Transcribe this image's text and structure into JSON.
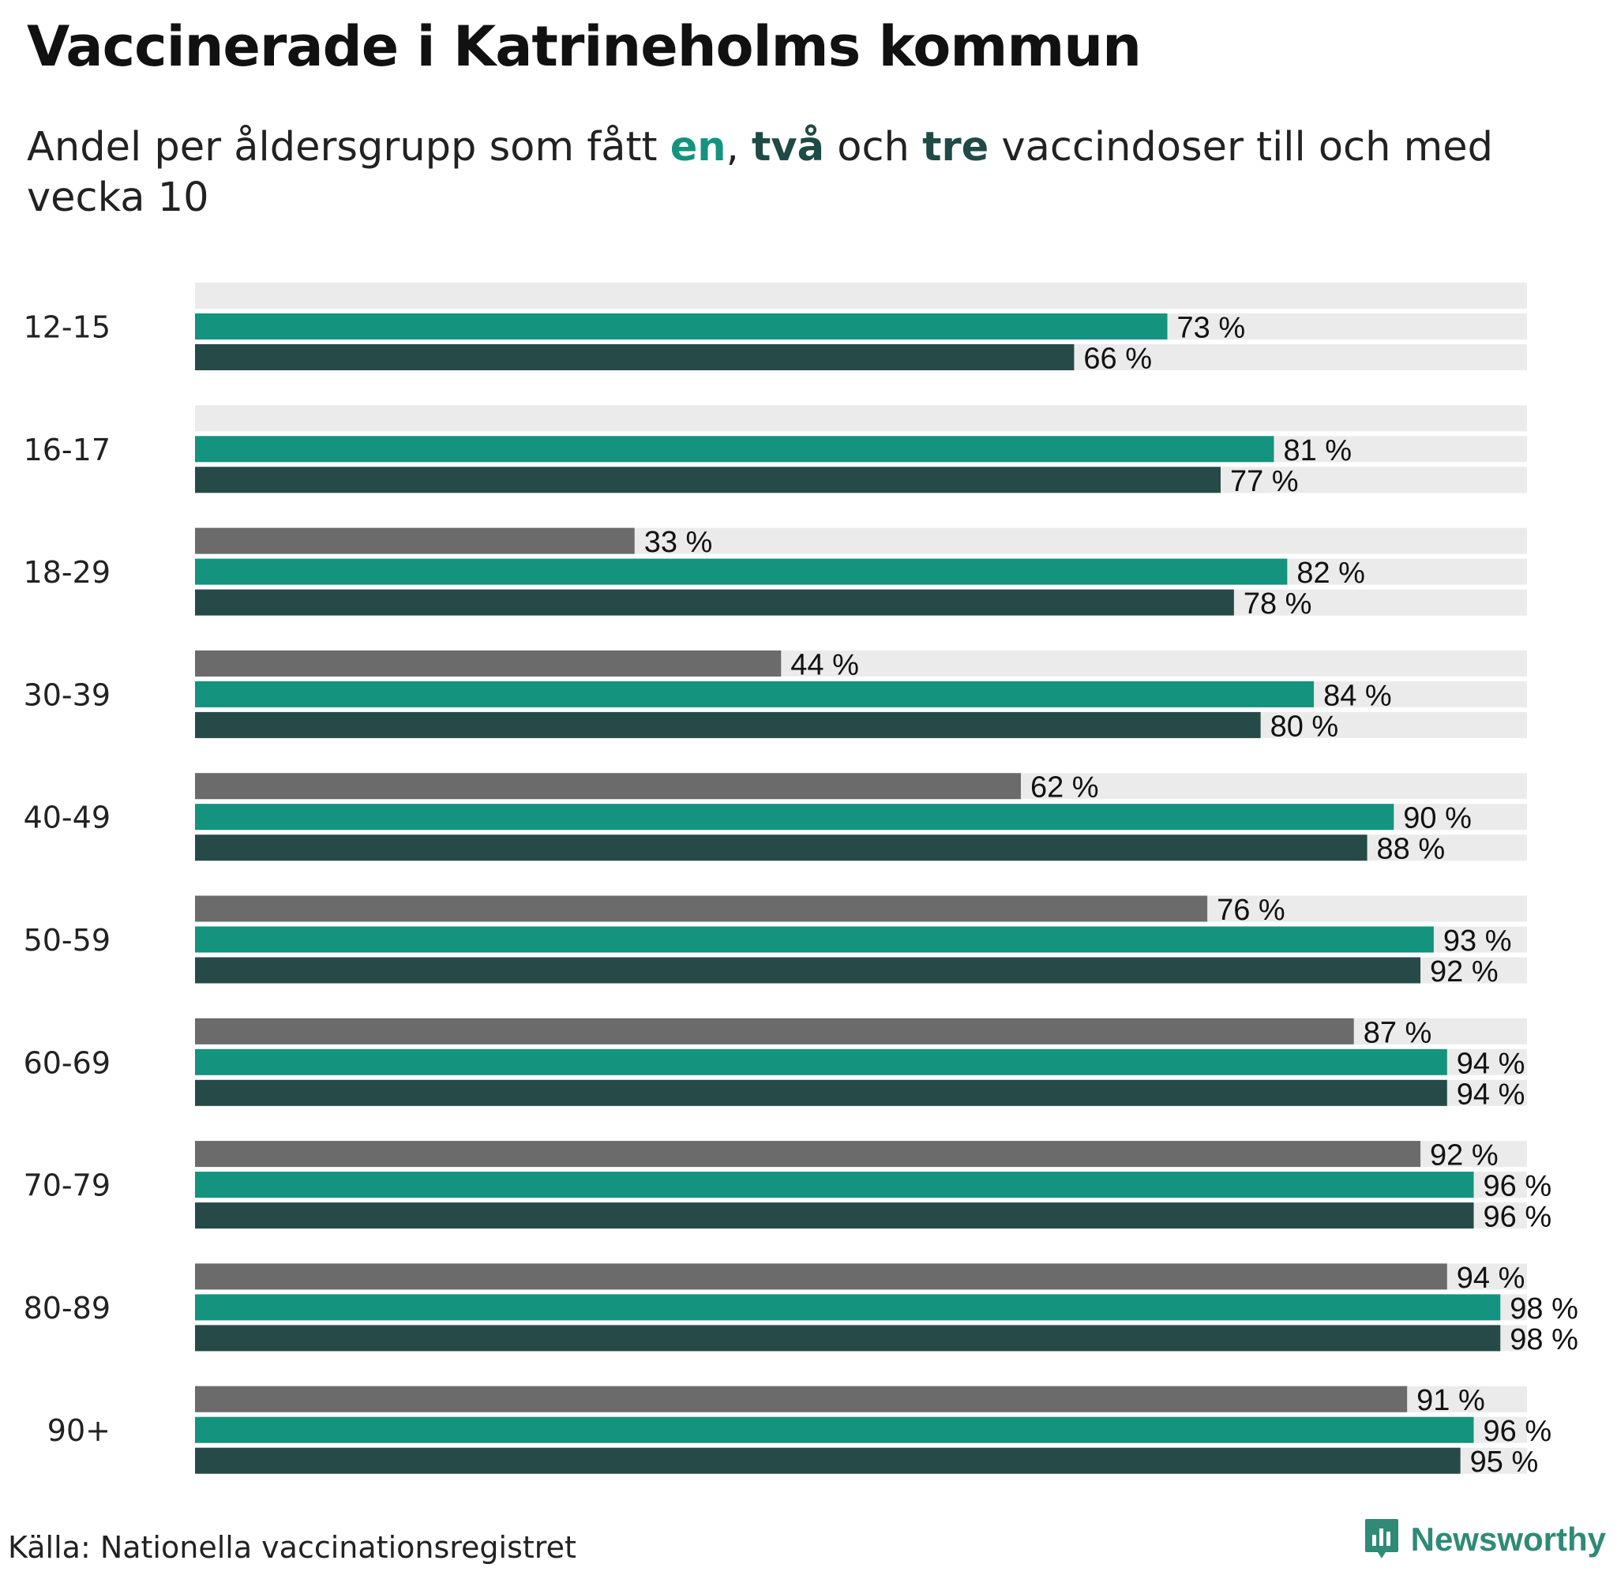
{
  "title": "Vaccinerade i Katrineholms kommun",
  "subtitle": {
    "before": "Andel per åldersgrupp som fått ",
    "k1": "en",
    "sep1": ", ",
    "k2": "två",
    "sep2": " och ",
    "k3": "tre",
    "after": " vaccindoser till och med vecka 10"
  },
  "colors": {
    "dose1": "#14937f",
    "dose2": "#264a47",
    "dose3": "#6b6b6b",
    "track": "#ebebeb"
  },
  "chart_data": {
    "type": "bar",
    "orientation": "horizontal",
    "xlim": [
      0,
      100
    ],
    "unit": "%",
    "categories": [
      "12-15",
      "16-17",
      "18-29",
      "30-39",
      "40-49",
      "50-59",
      "60-69",
      "70-79",
      "80-89",
      "90+"
    ],
    "series": [
      {
        "name": "tre",
        "color": "#6b6b6b",
        "values": [
          null,
          null,
          33,
          44,
          62,
          76,
          87,
          92,
          94,
          91
        ]
      },
      {
        "name": "en",
        "color": "#14937f",
        "values": [
          73,
          81,
          82,
          84,
          90,
          93,
          94,
          96,
          98,
          96
        ]
      },
      {
        "name": "två",
        "color": "#264a47",
        "values": [
          66,
          77,
          78,
          80,
          88,
          92,
          94,
          96,
          98,
          95
        ]
      }
    ],
    "labels": [
      [
        "",
        "73 %",
        "66 %"
      ],
      [
        "",
        "81 %",
        "77 %"
      ],
      [
        "33 %",
        "82 %",
        "78 %"
      ],
      [
        "44 %",
        "84 %",
        "80 %"
      ],
      [
        "62 %",
        "90 %",
        "88 %"
      ],
      [
        "76 %",
        "93 %",
        "92 %"
      ],
      [
        "87 %",
        "94 %",
        "94 %"
      ],
      [
        "92 %",
        "96 %",
        "96 %"
      ],
      [
        "94 %",
        "98 %",
        "98 %"
      ],
      [
        "91 %",
        "96 %",
        "95 %"
      ]
    ]
  },
  "source": "Källa: Nationella vaccinationsregistret",
  "brand": {
    "name": "Newsworthy",
    "icon": "bar-chart-logo-icon"
  }
}
